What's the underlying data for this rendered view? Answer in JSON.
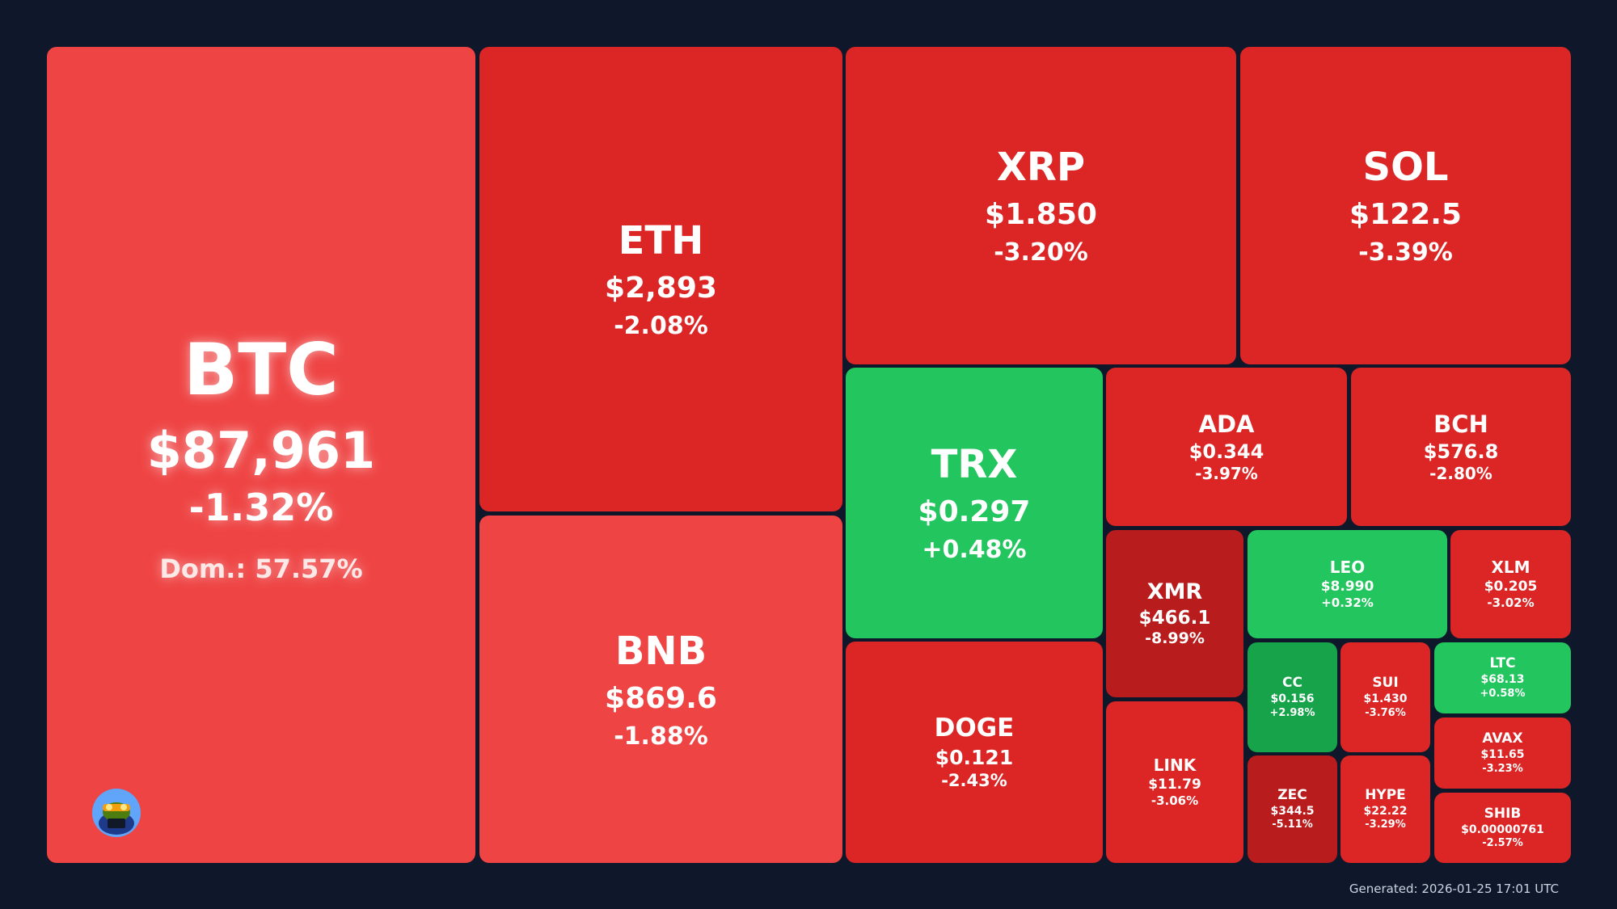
{
  "colors": {
    "background": "#0f172a",
    "light_red": "#ef4444",
    "red": "#dc2626",
    "dark_red": "#b91c1c",
    "green": "#22c55e",
    "dark_green": "#16a34a"
  },
  "footer": {
    "generated": "Generated: 2026-01-25 17:01 UTC"
  },
  "avatar": {
    "icon": "pepe-mascot-icon"
  },
  "chart_data": {
    "type": "treemap",
    "title": "",
    "tiles": [
      {
        "symbol": "BTC",
        "price": "$87,961",
        "change": "-1.32%",
        "change_value": -1.32,
        "extra": "Dom.: 57.57%",
        "color": "#ef4444"
      },
      {
        "symbol": "ETH",
        "price": "$2,893",
        "change": "-2.08%",
        "change_value": -2.08,
        "color": "#dc2626"
      },
      {
        "symbol": "BNB",
        "price": "$869.6",
        "change": "-1.88%",
        "change_value": -1.88,
        "color": "#ef4444"
      },
      {
        "symbol": "XRP",
        "price": "$1.850",
        "change": "-3.20%",
        "change_value": -3.2,
        "color": "#dc2626"
      },
      {
        "symbol": "SOL",
        "price": "$122.5",
        "change": "-3.39%",
        "change_value": -3.39,
        "color": "#dc2626"
      },
      {
        "symbol": "TRX",
        "price": "$0.297",
        "change": "+0.48%",
        "change_value": 0.48,
        "color": "#22c55e"
      },
      {
        "symbol": "DOGE",
        "price": "$0.121",
        "change": "-2.43%",
        "change_value": -2.43,
        "color": "#dc2626"
      },
      {
        "symbol": "ADA",
        "price": "$0.344",
        "change": "-3.97%",
        "change_value": -3.97,
        "color": "#dc2626"
      },
      {
        "symbol": "BCH",
        "price": "$576.8",
        "change": "-2.80%",
        "change_value": -2.8,
        "color": "#dc2626"
      },
      {
        "symbol": "XMR",
        "price": "$466.1",
        "change": "-8.99%",
        "change_value": -8.99,
        "color": "#b91c1c"
      },
      {
        "symbol": "LINK",
        "price": "$11.79",
        "change": "-3.06%",
        "change_value": -3.06,
        "color": "#dc2626"
      },
      {
        "symbol": "LEO",
        "price": "$8.990",
        "change": "+0.32%",
        "change_value": 0.32,
        "color": "#22c55e"
      },
      {
        "symbol": "XLM",
        "price": "$0.205",
        "change": "-3.02%",
        "change_value": -3.02,
        "color": "#dc2626"
      },
      {
        "symbol": "CC",
        "price": "$0.156",
        "change": "+2.98%",
        "change_value": 2.98,
        "color": "#16a34a"
      },
      {
        "symbol": "SUI",
        "price": "$1.430",
        "change": "-3.76%",
        "change_value": -3.76,
        "color": "#dc2626"
      },
      {
        "symbol": "LTC",
        "price": "$68.13",
        "change": "+0.58%",
        "change_value": 0.58,
        "color": "#22c55e"
      },
      {
        "symbol": "AVAX",
        "price": "$11.65",
        "change": "-3.23%",
        "change_value": -3.23,
        "color": "#dc2626"
      },
      {
        "symbol": "ZEC",
        "price": "$344.5",
        "change": "-5.11%",
        "change_value": -5.11,
        "color": "#b91c1c"
      },
      {
        "symbol": "HYPE",
        "price": "$22.22",
        "change": "-3.29%",
        "change_value": -3.29,
        "color": "#dc2626"
      },
      {
        "symbol": "SHIB",
        "price": "$0.00000761",
        "change": "-2.57%",
        "change_value": -2.57,
        "color": "#dc2626"
      }
    ]
  }
}
